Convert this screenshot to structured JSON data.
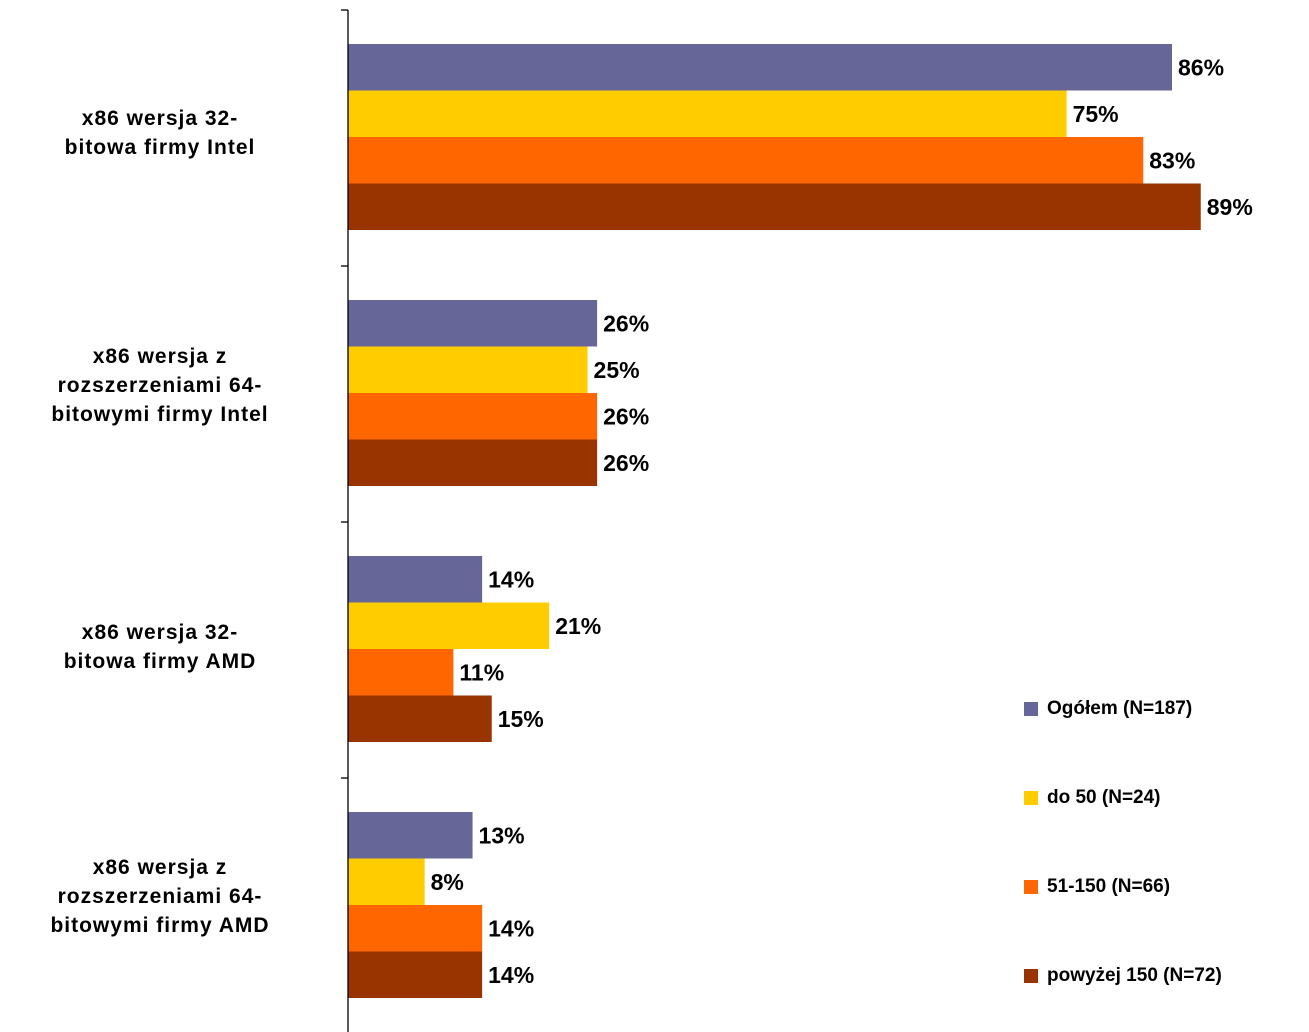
{
  "chart_data": {
    "type": "bar",
    "orientation": "horizontal",
    "categories": [
      "x86 wersja 32-\nbitowa firmy Intel",
      "x86 wersja z\nrozszerzeniami 64-\nbitowymi firmy Intel",
      "x86 wersja 32-\nbitowa firmy AMD",
      "x86 wersja z\nrozszerzeniami 64-\nbitowymi firmy AMD"
    ],
    "series": [
      {
        "name": "Ogółem (N=187)",
        "color": "#666699",
        "values": [
          86,
          26,
          14,
          13
        ]
      },
      {
        "name": "do 50 (N=24)",
        "color": "#ffcc00",
        "values": [
          75,
          25,
          21,
          8
        ]
      },
      {
        "name": "51-150 (N=66)",
        "color": "#ff6600",
        "values": [
          83,
          26,
          11,
          14
        ]
      },
      {
        "name": "powyżej 150 (N=72)",
        "color": "#993300",
        "values": [
          89,
          26,
          15,
          14
        ]
      }
    ],
    "value_suffix": "%",
    "xlim": [
      0,
      100
    ],
    "grid": false,
    "legend_position": "bottom-right",
    "title": "",
    "xlabel": "",
    "ylabel": ""
  }
}
